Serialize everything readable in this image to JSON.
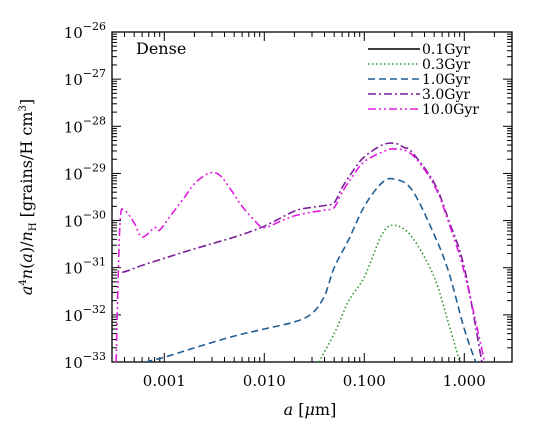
{
  "chart_data": {
    "type": "line",
    "panel_label": "Dense",
    "xlabel": "a [μm]",
    "ylabel": "a⁴n(a)/n_H [grains/H cm³]",
    "x_scale": "log",
    "y_scale": "log",
    "xlim": [
      0.0003,
      3.0
    ],
    "ylim": [
      1e-33,
      1e-26
    ],
    "x_ticks": [
      {
        "value": 0.001,
        "label": "0.001"
      },
      {
        "value": 0.01,
        "label": "0.010"
      },
      {
        "value": 0.1,
        "label": "0.100"
      },
      {
        "value": 1.0,
        "label": "1.000"
      }
    ],
    "y_ticks": [
      {
        "value": -33,
        "base": "10",
        "exp": "−33"
      },
      {
        "value": -32,
        "base": "10",
        "exp": "−32"
      },
      {
        "value": -31,
        "base": "10",
        "exp": "−31"
      },
      {
        "value": -30,
        "base": "10",
        "exp": "−30"
      },
      {
        "value": -29,
        "base": "10",
        "exp": "−29"
      },
      {
        "value": -28,
        "base": "10",
        "exp": "−28"
      },
      {
        "value": -27,
        "base": "10",
        "exp": "−27"
      },
      {
        "value": -26,
        "base": "10",
        "exp": "−26"
      }
    ],
    "legend_position": "top-right",
    "series": [
      {
        "name": "0.1Gyr",
        "color": "#000000",
        "dash": "solid",
        "x": [],
        "log10_y": []
      },
      {
        "name": "0.3Gyr",
        "color": "#2e9a2e",
        "dash": "dotted",
        "x": [
          0.035,
          0.05,
          0.07,
          0.1,
          0.15,
          0.2,
          0.3,
          0.5,
          0.7,
          0.9
        ],
        "log10_y": [
          -33.0,
          -32.4,
          -31.7,
          -31.2,
          -30.3,
          -30.1,
          -30.35,
          -31.2,
          -32.2,
          -33.0
        ]
      },
      {
        "name": "1.0Gyr",
        "color": "#1f5f96",
        "dash": "dashed",
        "x": [
          0.00065,
          0.001,
          0.002,
          0.005,
          0.01,
          0.02,
          0.03,
          0.04,
          0.05,
          0.07,
          0.1,
          0.15,
          0.2,
          0.3,
          0.5,
          0.7,
          1.0,
          1.3
        ],
        "log10_y": [
          -33.0,
          -32.9,
          -32.7,
          -32.45,
          -32.3,
          -32.15,
          -31.97,
          -31.6,
          -31.0,
          -30.4,
          -29.7,
          -29.2,
          -29.12,
          -29.35,
          -30.3,
          -31.1,
          -32.3,
          -33.0
        ]
      },
      {
        "name": "3.0Gyr",
        "color": "#7a1f9a",
        "dash": "dashdot",
        "x": [
          0.00038,
          0.00045,
          0.0006,
          0.001,
          0.002,
          0.005,
          0.01,
          0.02,
          0.03,
          0.04,
          0.05,
          0.06,
          0.08,
          0.1,
          0.15,
          0.2,
          0.25,
          0.3,
          0.5,
          0.7,
          1.0,
          1.5
        ],
        "log10_y": [
          -31.1,
          -31.05,
          -30.95,
          -30.8,
          -30.6,
          -30.35,
          -30.12,
          -29.8,
          -29.72,
          -29.68,
          -29.62,
          -29.3,
          -28.9,
          -28.65,
          -28.4,
          -28.36,
          -28.45,
          -28.55,
          -29.2,
          -30.0,
          -31.0,
          -33.0
        ]
      },
      {
        "name": "10.0Gyr",
        "color": "#e01ee0",
        "dash": "dashdotdot",
        "x": [
          0.00033,
          0.00036,
          0.0004,
          0.0005,
          0.0006,
          0.0008,
          0.0009,
          0.0012,
          0.0016,
          0.002,
          0.0025,
          0.003,
          0.0035,
          0.004,
          0.005,
          0.006,
          0.008,
          0.01,
          0.015,
          0.02,
          0.03,
          0.04,
          0.05,
          0.06,
          0.08,
          0.1,
          0.15,
          0.2,
          0.3,
          0.5,
          0.7,
          1.0,
          1.6
        ],
        "log10_y": [
          -33.0,
          -30.1,
          -29.8,
          -30.05,
          -30.35,
          -30.15,
          -30.2,
          -29.85,
          -29.5,
          -29.22,
          -29.05,
          -28.98,
          -29.02,
          -29.15,
          -29.45,
          -29.7,
          -30.0,
          -30.15,
          -30.0,
          -29.9,
          -29.82,
          -29.78,
          -29.72,
          -29.4,
          -29.0,
          -28.75,
          -28.55,
          -28.48,
          -28.6,
          -29.25,
          -30.05,
          -31.1,
          -33.0
        ]
      }
    ]
  }
}
